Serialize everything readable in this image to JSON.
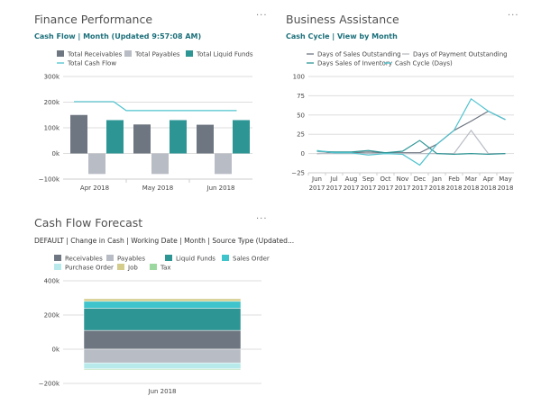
{
  "finance": {
    "title": "Finance Performance",
    "subtitle": "Cash Flow | Month (Updated 9:57:08 AM)",
    "more": "···",
    "chart_data": {
      "type": "bar",
      "categories": [
        "Apr 2018",
        "May 2018",
        "Jun 2018"
      ],
      "ylim": [
        -100000,
        300000
      ],
      "yticks": [
        "300k",
        "200k",
        "100k",
        "0k",
        "−100k"
      ],
      "grid": true,
      "legend": "top",
      "series": [
        {
          "name": "Total Receivables",
          "type": "bar",
          "color": "#6e7681",
          "values": [
            150000,
            113000,
            112000
          ]
        },
        {
          "name": "Total Payables",
          "type": "bar",
          "color": "#b8bcc4",
          "values": [
            -80000,
            -80000,
            -80000
          ]
        },
        {
          "name": "Total Liquid Funds",
          "type": "bar",
          "color": "#2e9595",
          "values": [
            130000,
            130000,
            130000
          ]
        },
        {
          "name": "Total Cash Flow",
          "type": "line",
          "color": "#4fc3cf",
          "values": [
            202000,
            167000,
            167000
          ]
        }
      ]
    }
  },
  "business": {
    "title": "Business Assistance",
    "subtitle": "Cash Cycle | View by Month",
    "more": "···",
    "chart_data": {
      "type": "line",
      "categories": [
        [
          "Jun",
          "2017"
        ],
        [
          "Jul",
          "2017"
        ],
        [
          "Aug",
          "2017"
        ],
        [
          "Sep",
          "2017"
        ],
        [
          "Oct",
          "2017"
        ],
        [
          "Nov",
          "2017"
        ],
        [
          "Dec",
          "2017"
        ],
        [
          "Jan",
          "2018"
        ],
        [
          "Feb",
          "2018"
        ],
        [
          "Mar",
          "2018"
        ],
        [
          "Apr",
          "2018"
        ],
        [
          "May",
          "2018"
        ]
      ],
      "ylim": [
        -25,
        100
      ],
      "yticks": [
        "100",
        "75",
        "50",
        "25",
        "0",
        "−25"
      ],
      "grid": true,
      "legend": "top",
      "series": [
        {
          "name": "Days of Sales Outstanding",
          "color": "#6e7681",
          "values": [
            0,
            1,
            1,
            2,
            1,
            1,
            1,
            12,
            30,
            42,
            55,
            44
          ]
        },
        {
          "name": "Days of Payment Outstanding",
          "color": "#b8bcc4",
          "values": [
            0,
            0,
            0,
            0,
            0,
            0,
            0,
            0,
            0,
            30,
            0,
            0
          ]
        },
        {
          "name": "Days Sales of Inventory",
          "color": "#2e9595",
          "values": [
            3,
            2,
            2,
            4,
            1,
            3,
            17,
            0,
            -1,
            0,
            -1,
            0
          ]
        },
        {
          "name": "Cash Cycle (Days)",
          "color": "#4fc3cf",
          "values": [
            4,
            1,
            1,
            -2,
            0,
            -1,
            -15,
            12,
            30,
            71,
            55,
            44
          ]
        }
      ]
    }
  },
  "forecast": {
    "title": "Cash Flow Forecast",
    "subtitle": "DEFAULT | Change in Cash | Working Date | Month | Source Type (Updated...",
    "more": "···",
    "chart_data": {
      "type": "bar",
      "stacked": true,
      "categories": [
        "Jun 2018"
      ],
      "ylim": [
        -200000,
        400000
      ],
      "yticks": [
        "400k",
        "200k",
        "0k",
        "−200k"
      ],
      "grid": true,
      "legend": "top",
      "series": [
        {
          "name": "Receivables",
          "color": "#6e7681",
          "values": [
            110000
          ]
        },
        {
          "name": "Payables",
          "color": "#b8bcc4",
          "values": [
            -80000
          ]
        },
        {
          "name": "Liquid Funds",
          "color": "#2e9595",
          "values": [
            130000
          ]
        },
        {
          "name": "Sales Order",
          "color": "#3fc4cc",
          "values": [
            40000
          ]
        },
        {
          "name": "Purchase Order",
          "color": "#b8eaec",
          "values": [
            -35000
          ]
        },
        {
          "name": "Job",
          "color": "#d4cc8a",
          "values": [
            15000
          ]
        },
        {
          "name": "Tax",
          "color": "#9ad8a0",
          "values": [
            -4000
          ]
        }
      ]
    }
  }
}
